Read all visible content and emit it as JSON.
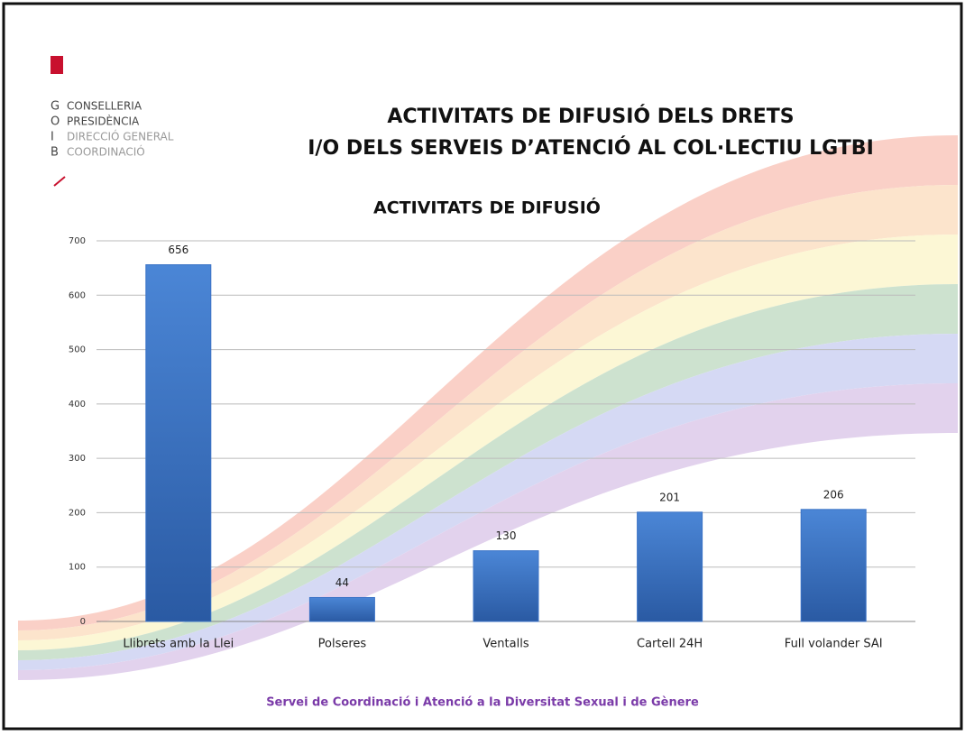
{
  "logo": {
    "letters": [
      "G",
      "O",
      "I",
      "B"
    ],
    "lines": [
      "CONSELLERIA",
      "PRESIDÈNCIA",
      "DIRECCIÓ GENERAL",
      "COORDINACIÓ"
    ]
  },
  "slide_title": [
    "ACTIVITATS DE DIFUSIÓ DELS DRETS",
    "I/O DELS SERVEIS D’ATENCIÓ AL COL·LECTIU LGTBI"
  ],
  "footer": "Servei de Coordinació i Atenció a la Diversitat Sexual i de Gènere",
  "chart_data": {
    "type": "bar",
    "title": "ACTIVITATS DE DIFUSIÓ",
    "categories": [
      "Llibrets amb la Llei",
      "Polseres",
      "Ventalls",
      "Cartell 24H",
      "Full volander SAI"
    ],
    "values": [
      656,
      44,
      130,
      201,
      206
    ],
    "color": "#3a72c6",
    "ylim": [
      0,
      700
    ],
    "yticks": [
      0,
      100,
      200,
      300,
      400,
      500,
      600,
      700
    ],
    "grid": true,
    "data_labels": true
  }
}
